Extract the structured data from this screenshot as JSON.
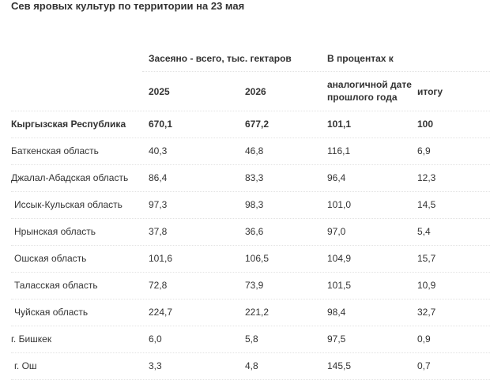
{
  "title": "Сев яровых культур по территории на 23 мая",
  "table": {
    "header": {
      "group_sown": "Засеяно - всего, тыс. гектаров",
      "group_percent": "В процентах к",
      "col_2025": "2025",
      "col_2026": "2026",
      "col_prev": "аналогичной  дате прошлого года",
      "col_total": "итогу"
    },
    "rows": [
      {
        "name": "Кыргызская Республика",
        "v2025": "670,1",
        "v2026": "677,2",
        "prev": "101,1",
        "total": "100"
      },
      {
        "name": "Баткенская область",
        "v2025": "40,3",
        "v2026": "46,8",
        "prev": "116,1",
        "total": "6,9"
      },
      {
        "name": "Джалал-Абадская область",
        "v2025": "86,4",
        "v2026": "83,3",
        "prev": "96,4",
        "total": "12,3"
      },
      {
        "name": "Иссык-Кульская область",
        "v2025": "97,3",
        "v2026": "98,3",
        "prev": "101,0",
        "total": "14,5"
      },
      {
        "name": "Нрынская область",
        "v2025": "37,8",
        "v2026": "36,6",
        "prev": "97,0",
        "total": "5,4"
      },
      {
        "name": "Ошская область",
        "v2025": "101,6",
        "v2026": "106,5",
        "prev": "104,9",
        "total": "15,7"
      },
      {
        "name": "Таласская область",
        "v2025": "72,8",
        "v2026": "73,9",
        "prev": "101,5",
        "total": "10,9"
      },
      {
        "name": "Чуйская область",
        "v2025": "224,7",
        "v2026": "221,2",
        "prev": "98,4",
        "total": "32,7"
      },
      {
        "name": "г. Бишкек",
        "v2025": "6,0",
        "v2026": "5,8",
        "prev": "97,5",
        "total": "0,9"
      },
      {
        "name": "г. Ош",
        "v2025": "3,3",
        "v2026": "4,8",
        "prev": "145,5",
        "total": "0,7"
      }
    ]
  }
}
